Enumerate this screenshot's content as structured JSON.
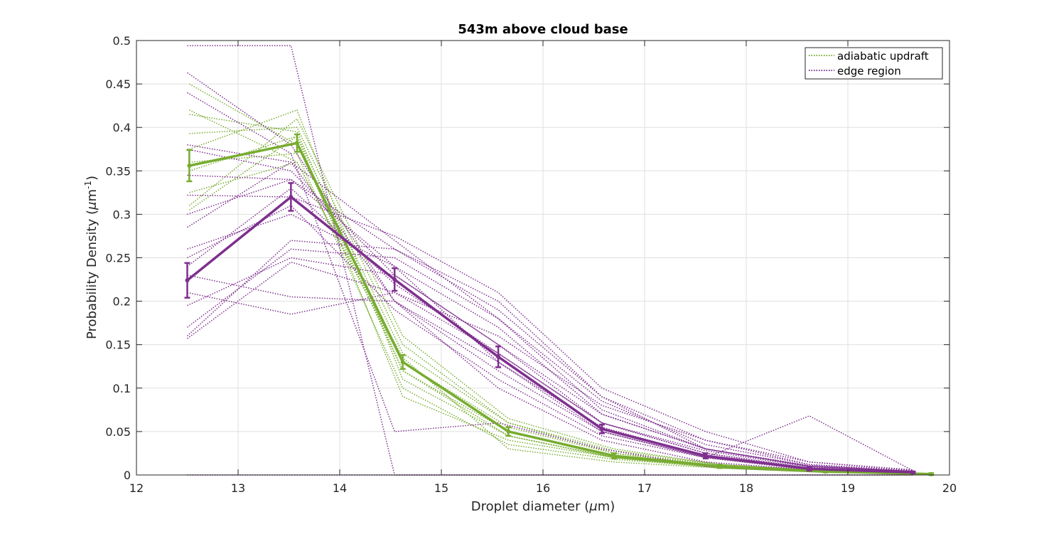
{
  "chart_data": {
    "type": "line",
    "title": "543m above cloud base",
    "xlabel": "Droplet diameter (μm)",
    "ylabel": "Probability Density (μm-1)",
    "xlabel_parts": {
      "pre": "Droplet diameter (",
      "mu": "μ",
      "post": "m)"
    },
    "ylabel_parts": {
      "pre": "Probability Density (",
      "mu": "μ",
      "unit": "m",
      "sup": "-1",
      "post": ")"
    },
    "xlim": [
      12,
      20
    ],
    "ylim": [
      0,
      0.5
    ],
    "xticks": [
      12,
      13,
      14,
      15,
      16,
      17,
      18,
      19,
      20
    ],
    "yticks": [
      0,
      0.05,
      0.1,
      0.15,
      0.2,
      0.25,
      0.3,
      0.35,
      0.4,
      0.45,
      0.5
    ],
    "ytick_labels": [
      "0",
      "0.05",
      "0.1",
      "0.15",
      "0.2",
      "0.25",
      "0.3",
      "0.35",
      "0.4",
      "0.45",
      "0.5"
    ],
    "grid": true,
    "legend_position": "top-right",
    "colors": {
      "adiabatic": "#77ac30",
      "edge": "#7e2f8e"
    },
    "legend": [
      {
        "label": "adiabatic updraft",
        "color": "#77ac30"
      },
      {
        "label": "edge region",
        "color": "#7e2f8e"
      }
    ],
    "series": [
      {
        "name": "adiabatic updraft",
        "role": "mean",
        "style": "solid",
        "color": "#77ac30",
        "x": [
          12.52,
          13.58,
          14.62,
          15.66,
          16.7,
          17.74,
          18.78,
          19.82
        ],
        "y": [
          0.356,
          0.382,
          0.13,
          0.05,
          0.022,
          0.01,
          0.004,
          0.001
        ],
        "err": [
          0.018,
          0.01,
          0.008,
          0.005,
          0.003,
          0.002,
          0.001,
          0.001
        ]
      },
      {
        "name": "edge region",
        "role": "mean",
        "style": "solid",
        "color": "#7e2f8e",
        "x": [
          12.5,
          13.52,
          14.54,
          15.56,
          16.58,
          17.6,
          18.62,
          19.64
        ],
        "y": [
          0.224,
          0.32,
          0.225,
          0.136,
          0.053,
          0.022,
          0.007,
          0.003
        ],
        "err": [
          0.02,
          0.016,
          0.013,
          0.012,
          0.005,
          0.003,
          0.002,
          0.001
        ]
      },
      {
        "role": "sample",
        "style": "dotted",
        "color": "#77ac30",
        "x": [
          12.52,
          13.58,
          14.62,
          15.66,
          16.7,
          17.74,
          18.78,
          19.82
        ],
        "y": [
          0.45,
          0.38,
          0.12,
          0.05,
          0.02,
          0.01,
          0.004,
          0.001
        ]
      },
      {
        "role": "sample",
        "style": "dotted",
        "color": "#77ac30",
        "x": [
          12.52,
          13.58,
          14.62,
          15.66,
          16.7,
          17.74,
          18.78,
          19.82
        ],
        "y": [
          0.42,
          0.36,
          0.13,
          0.055,
          0.025,
          0.01,
          0.005,
          0.001
        ]
      },
      {
        "role": "sample",
        "style": "dotted",
        "color": "#77ac30",
        "x": [
          12.52,
          13.58,
          14.62,
          15.66,
          16.7,
          17.74,
          18.78,
          19.82
        ],
        "y": [
          0.393,
          0.4,
          0.15,
          0.06,
          0.025,
          0.012,
          0.004,
          0.001
        ]
      },
      {
        "role": "sample",
        "style": "dotted",
        "color": "#77ac30",
        "x": [
          12.52,
          13.58,
          14.62,
          15.66,
          16.7,
          17.74,
          18.78,
          19.82
        ],
        "y": [
          0.375,
          0.42,
          0.11,
          0.045,
          0.02,
          0.008,
          0.003,
          0.001
        ]
      },
      {
        "role": "sample",
        "style": "dotted",
        "color": "#77ac30",
        "x": [
          12.52,
          13.58,
          14.62,
          15.66,
          16.7,
          17.74,
          18.78,
          19.82
        ],
        "y": [
          0.35,
          0.39,
          0.09,
          0.04,
          0.02,
          0.008,
          0.003,
          0.001
        ]
      },
      {
        "role": "sample",
        "style": "dotted",
        "color": "#77ac30",
        "x": [
          12.52,
          13.58,
          14.62,
          15.66,
          16.7,
          17.74,
          18.78,
          19.82
        ],
        "y": [
          0.305,
          0.39,
          0.14,
          0.06,
          0.028,
          0.012,
          0.005,
          0.001
        ]
      },
      {
        "role": "sample",
        "style": "dotted",
        "color": "#77ac30",
        "x": [
          12.52,
          13.58,
          14.62,
          15.66,
          16.7,
          17.74,
          18.78,
          19.82
        ],
        "y": [
          0.31,
          0.41,
          0.16,
          0.065,
          0.03,
          0.012,
          0.004,
          0.001
        ]
      },
      {
        "role": "sample",
        "style": "dotted",
        "color": "#77ac30",
        "x": [
          12.52,
          13.58,
          14.62,
          15.66,
          16.7,
          17.74,
          18.78,
          19.82
        ],
        "y": [
          0.36,
          0.37,
          0.1,
          0.035,
          0.018,
          0.009,
          0.004,
          0.001
        ]
      },
      {
        "role": "sample",
        "style": "dotted",
        "color": "#77ac30",
        "x": [
          12.52,
          13.58,
          14.62,
          15.66,
          16.7,
          17.74,
          18.78,
          19.82
        ],
        "y": [
          0.415,
          0.395,
          0.12,
          0.045,
          0.02,
          0.01,
          0.004,
          0.001
        ]
      },
      {
        "role": "sample",
        "style": "dotted",
        "color": "#77ac30",
        "x": [
          12.52,
          13.58,
          14.62,
          15.66,
          16.7,
          17.74,
          18.78,
          19.82
        ],
        "y": [
          0.325,
          0.36,
          0.135,
          0.03,
          0.015,
          0.008,
          0.003,
          0.001
        ]
      },
      {
        "role": "sample",
        "style": "dotted",
        "color": "#7e2f8e",
        "x": [
          12.5,
          13.52,
          14.54,
          15.56,
          16.58,
          17.6,
          18.62,
          19.64
        ],
        "y": [
          0.494,
          0.494,
          0.0,
          0.0,
          0.0,
          0.0,
          0.0,
          0.0
        ]
      },
      {
        "role": "sample",
        "style": "dotted",
        "color": "#7e2f8e",
        "x": [
          12.5,
          13.52,
          14.54,
          15.56,
          16.58,
          17.6,
          18.62,
          19.64
        ],
        "y": [
          0.0,
          0.0,
          0.0,
          0.0,
          0.0,
          0.0,
          0.0,
          0.0
        ]
      },
      {
        "role": "sample",
        "style": "dotted",
        "color": "#7e2f8e",
        "x": [
          12.5,
          13.52,
          14.54,
          15.56,
          16.58,
          17.6,
          18.62,
          19.64
        ],
        "y": [
          0.463,
          0.38,
          0.2,
          0.1,
          0.04,
          0.015,
          0.006,
          0.002
        ]
      },
      {
        "role": "sample",
        "style": "dotted",
        "color": "#7e2f8e",
        "x": [
          12.5,
          13.52,
          14.54,
          15.56,
          16.58,
          17.6,
          18.62,
          19.64
        ],
        "y": [
          0.44,
          0.37,
          0.05,
          0.06,
          0.03,
          0.01,
          0.004,
          0.001
        ]
      },
      {
        "role": "sample",
        "style": "dotted",
        "color": "#7e2f8e",
        "x": [
          12.5,
          13.52,
          14.54,
          15.56,
          16.58,
          17.6,
          18.62,
          19.64
        ],
        "y": [
          0.375,
          0.35,
          0.23,
          0.15,
          0.06,
          0.025,
          0.008,
          0.003
        ]
      },
      {
        "role": "sample",
        "style": "dotted",
        "color": "#7e2f8e",
        "x": [
          12.5,
          13.52,
          14.54,
          15.56,
          16.58,
          17.6,
          18.62,
          19.64
        ],
        "y": [
          0.345,
          0.34,
          0.26,
          0.2,
          0.09,
          0.03,
          0.01,
          0.004
        ]
      },
      {
        "role": "sample",
        "style": "dotted",
        "color": "#7e2f8e",
        "x": [
          12.5,
          13.52,
          14.54,
          15.56,
          16.58,
          17.6,
          18.62,
          19.64
        ],
        "y": [
          0.322,
          0.32,
          0.275,
          0.21,
          0.1,
          0.05,
          0.015,
          0.005
        ]
      },
      {
        "role": "sample",
        "style": "dotted",
        "color": "#7e2f8e",
        "x": [
          12.5,
          13.52,
          14.54,
          15.56,
          16.58,
          17.6,
          18.62,
          19.64
        ],
        "y": [
          0.285,
          0.36,
          0.2,
          0.12,
          0.05,
          0.02,
          0.006,
          0.002
        ]
      },
      {
        "role": "sample",
        "style": "dotted",
        "color": "#7e2f8e",
        "x": [
          12.5,
          13.52,
          14.54,
          15.56,
          16.58,
          17.6,
          18.62,
          19.64
        ],
        "y": [
          0.26,
          0.3,
          0.24,
          0.17,
          0.07,
          0.03,
          0.01,
          0.004
        ]
      },
      {
        "role": "sample",
        "style": "dotted",
        "color": "#7e2f8e",
        "x": [
          12.5,
          13.52,
          14.54,
          15.56,
          16.58,
          17.6,
          18.62,
          19.64
        ],
        "y": [
          0.24,
          0.33,
          0.22,
          0.14,
          0.06,
          0.025,
          0.008,
          0.003
        ]
      },
      {
        "role": "sample",
        "style": "dotted",
        "color": "#7e2f8e",
        "x": [
          12.5,
          13.52,
          14.54,
          15.56,
          16.58,
          17.6,
          18.62,
          19.64
        ],
        "y": [
          0.23,
          0.205,
          0.2,
          0.13,
          0.05,
          0.02,
          0.068,
          0.005
        ]
      },
      {
        "role": "sample",
        "style": "dotted",
        "color": "#7e2f8e",
        "x": [
          12.5,
          13.52,
          14.54,
          15.56,
          16.58,
          17.6,
          18.62,
          19.64
        ],
        "y": [
          0.21,
          0.185,
          0.21,
          0.16,
          0.08,
          0.04,
          0.012,
          0.004
        ]
      },
      {
        "role": "sample",
        "style": "dotted",
        "color": "#7e2f8e",
        "x": [
          12.5,
          13.52,
          14.54,
          15.56,
          16.58,
          17.6,
          18.62,
          19.64
        ],
        "y": [
          0.195,
          0.25,
          0.23,
          0.15,
          0.07,
          0.03,
          0.01,
          0.004
        ]
      },
      {
        "role": "sample",
        "style": "dotted",
        "color": "#7e2f8e",
        "x": [
          12.5,
          13.52,
          14.54,
          15.56,
          16.58,
          17.6,
          18.62,
          19.64
        ],
        "y": [
          0.17,
          0.26,
          0.25,
          0.18,
          0.085,
          0.035,
          0.012,
          0.005
        ]
      },
      {
        "role": "sample",
        "style": "dotted",
        "color": "#7e2f8e",
        "x": [
          12.5,
          13.52,
          14.54,
          15.56,
          16.58,
          17.6,
          18.62,
          19.64
        ],
        "y": [
          0.16,
          0.27,
          0.26,
          0.19,
          0.09,
          0.04,
          0.015,
          0.006
        ]
      },
      {
        "role": "sample",
        "style": "dotted",
        "color": "#7e2f8e",
        "x": [
          12.5,
          13.52,
          14.54,
          15.56,
          16.58,
          17.6,
          18.62,
          19.64
        ],
        "y": [
          0.157,
          0.245,
          0.21,
          0.14,
          0.06,
          0.028,
          0.009,
          0.003
        ]
      },
      {
        "role": "sample",
        "style": "dotted",
        "color": "#7e2f8e",
        "x": [
          12.5,
          13.52,
          14.54,
          15.56,
          16.58,
          17.6,
          18.62,
          19.64
        ],
        "y": [
          0.25,
          0.31,
          0.19,
          0.11,
          0.045,
          0.02,
          0.007,
          0.002
        ]
      },
      {
        "role": "sample",
        "style": "dotted",
        "color": "#7e2f8e",
        "x": [
          12.5,
          13.52,
          14.54,
          15.56,
          16.58,
          17.6,
          18.62,
          19.64
        ],
        "y": [
          0.3,
          0.34,
          0.24,
          0.13,
          0.055,
          0.022,
          0.008,
          0.003
        ]
      },
      {
        "role": "sample",
        "style": "dotted",
        "color": "#7e2f8e",
        "x": [
          12.5,
          13.52,
          14.54,
          15.56,
          16.58,
          17.6,
          18.62,
          19.64
        ],
        "y": [
          0.38,
          0.36,
          0.27,
          0.18,
          0.075,
          0.03,
          0.011,
          0.004
        ]
      }
    ]
  }
}
